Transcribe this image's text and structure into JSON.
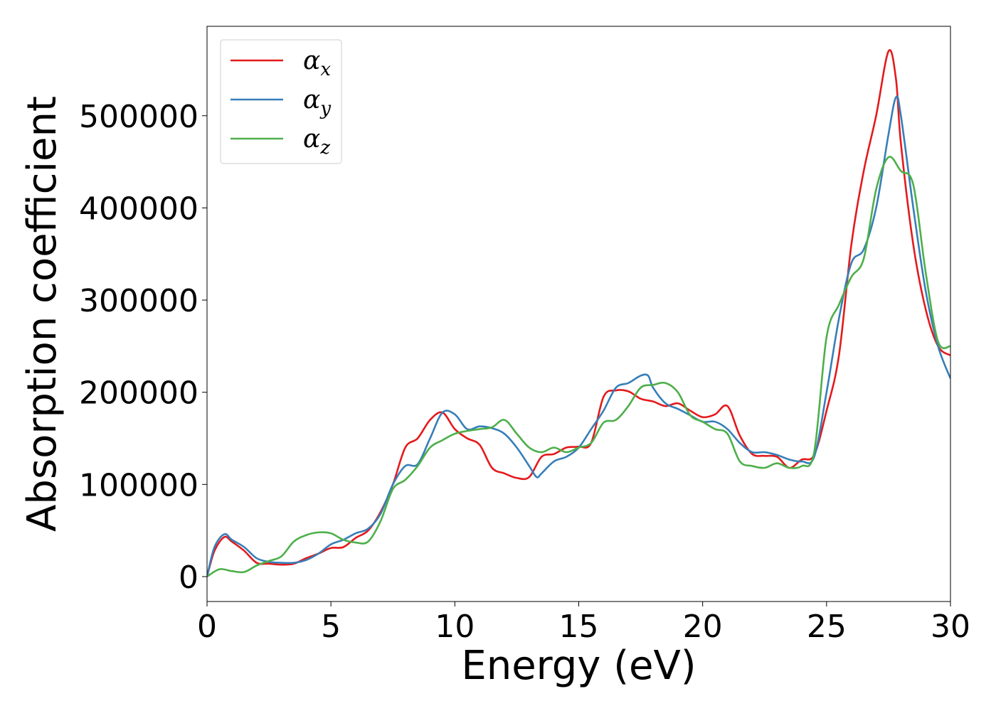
{
  "chart_data": {
    "type": "line",
    "xlabel": "Energy (eV)",
    "ylabel": "Absorption coefficient",
    "xlim": [
      0,
      30
    ],
    "ylim": [
      -27000,
      597000
    ],
    "xticks": [
      0,
      5,
      10,
      15,
      20,
      25,
      30
    ],
    "xtick_labels": [
      "0",
      "5",
      "10",
      "15",
      "20",
      "25",
      "30"
    ],
    "yticks": [
      0,
      100000,
      200000,
      300000,
      400000,
      500000
    ],
    "ytick_labels": [
      "0",
      "100000",
      "200000",
      "300000",
      "400000",
      "500000"
    ],
    "grid": false,
    "legend_position": "top-left",
    "series": [
      {
        "name": "α_x",
        "legend_main": "α",
        "legend_sub": "x",
        "color": "#e41a1c",
        "x": [
          0,
          0.3,
          0.7,
          1.0,
          1.5,
          2.0,
          2.5,
          3.0,
          3.5,
          4.0,
          4.5,
          5.0,
          5.5,
          6.0,
          6.5,
          7.0,
          7.5,
          8.0,
          8.5,
          9.0,
          9.5,
          10.0,
          10.5,
          11.0,
          11.5,
          12.0,
          12.5,
          13.0,
          13.5,
          14.0,
          14.5,
          15.0,
          15.5,
          16.0,
          16.5,
          17.0,
          17.5,
          18.0,
          18.5,
          19.0,
          19.5,
          20.0,
          20.5,
          21.0,
          21.5,
          22.0,
          22.5,
          23.0,
          23.5,
          24.0,
          24.5,
          25.0,
          25.5,
          26.0,
          26.5,
          27.0,
          27.5,
          27.8,
          28.0,
          28.5,
          29.0,
          29.5,
          30.0
        ],
        "y": [
          0,
          28000,
          43000,
          38000,
          28000,
          15000,
          14000,
          13000,
          14000,
          20000,
          25000,
          31000,
          32000,
          42000,
          50000,
          70000,
          100000,
          140000,
          150000,
          170000,
          178000,
          160000,
          150000,
          143000,
          118000,
          112000,
          107000,
          108000,
          130000,
          133000,
          140000,
          141000,
          145000,
          195000,
          202000,
          201000,
          193000,
          190000,
          185000,
          188000,
          180000,
          173000,
          176000,
          185000,
          153000,
          133000,
          131000,
          130000,
          118000,
          127000,
          132000,
          180000,
          240000,
          360000,
          440000,
          500000,
          570000,
          540000,
          470000,
          360000,
          290000,
          250000,
          240000
        ]
      },
      {
        "name": "α_y",
        "legend_main": "α",
        "legend_sub": "y",
        "color": "#377eb8",
        "x": [
          0,
          0.3,
          0.7,
          1.0,
          1.5,
          2.0,
          2.5,
          3.0,
          3.5,
          4.0,
          4.5,
          5.0,
          5.5,
          6.0,
          6.5,
          7.0,
          7.5,
          8.0,
          8.5,
          9.0,
          9.5,
          10.0,
          10.5,
          11.0,
          11.5,
          12.0,
          12.5,
          13.0,
          13.3,
          13.5,
          14.0,
          14.5,
          15.0,
          15.5,
          16.0,
          16.5,
          17.0,
          17.5,
          17.8,
          18.0,
          18.5,
          19.0,
          19.5,
          20.0,
          20.5,
          21.0,
          21.5,
          22.0,
          22.5,
          23.0,
          23.5,
          24.0,
          24.5,
          25.0,
          25.5,
          26.0,
          26.5,
          27.0,
          27.5,
          27.8,
          28.0,
          28.5,
          29.0,
          29.5,
          30.0
        ],
        "y": [
          0,
          32000,
          46000,
          40000,
          32000,
          20000,
          16000,
          15000,
          15000,
          18000,
          25000,
          35000,
          40000,
          47000,
          52000,
          68000,
          100000,
          120000,
          122000,
          150000,
          178000,
          176000,
          160000,
          163000,
          161000,
          155000,
          140000,
          120000,
          108000,
          112000,
          125000,
          130000,
          140000,
          160000,
          180000,
          205000,
          210000,
          218000,
          218000,
          205000,
          188000,
          182000,
          175000,
          168000,
          168000,
          160000,
          145000,
          135000,
          135000,
          132000,
          127000,
          125000,
          130000,
          200000,
          280000,
          340000,
          355000,
          400000,
          480000,
          520000,
          500000,
          400000,
          310000,
          250000,
          215000
        ]
      },
      {
        "name": "α_z",
        "legend_main": "α",
        "legend_sub": "z",
        "color": "#4daf4a",
        "x": [
          0,
          0.5,
          1.0,
          1.5,
          2.0,
          2.5,
          3.0,
          3.5,
          4.0,
          4.5,
          5.0,
          5.5,
          6.0,
          6.5,
          7.0,
          7.5,
          8.0,
          8.5,
          9.0,
          9.5,
          10.0,
          10.5,
          11.0,
          11.5,
          12.0,
          12.5,
          13.0,
          13.5,
          14.0,
          14.5,
          15.0,
          15.5,
          16.0,
          16.5,
          17.0,
          17.5,
          18.0,
          18.5,
          19.0,
          19.5,
          20.0,
          20.5,
          21.0,
          21.5,
          22.0,
          22.5,
          23.0,
          23.5,
          24.0,
          24.5,
          25.0,
          25.5,
          26.0,
          26.5,
          27.0,
          27.5,
          28.0,
          28.5,
          29.0,
          29.5,
          30.0
        ],
        "y": [
          0,
          8000,
          6000,
          5000,
          12000,
          17000,
          22000,
          38000,
          45000,
          48000,
          47000,
          40000,
          37000,
          38000,
          60000,
          95000,
          105000,
          120000,
          140000,
          148000,
          155000,
          158000,
          160000,
          162000,
          170000,
          155000,
          140000,
          135000,
          140000,
          135000,
          140000,
          145000,
          167000,
          170000,
          185000,
          205000,
          208000,
          210000,
          200000,
          175000,
          168000,
          160000,
          155000,
          125000,
          120000,
          118000,
          123000,
          118000,
          120000,
          135000,
          260000,
          295000,
          325000,
          345000,
          420000,
          455000,
          440000,
          425000,
          330000,
          255000,
          250000
        ]
      }
    ]
  }
}
